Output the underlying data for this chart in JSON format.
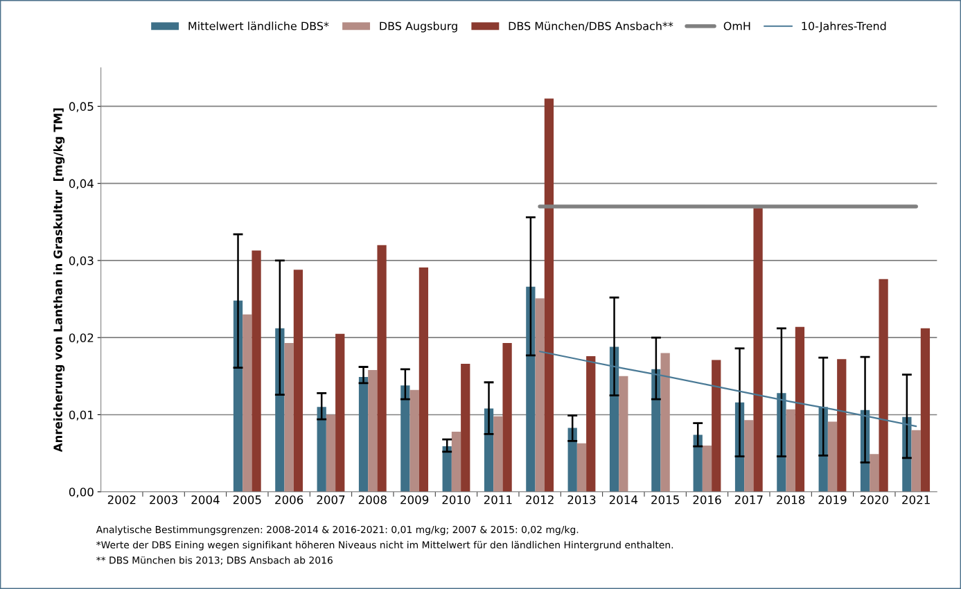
{
  "chart_data": {
    "type": "bar",
    "ylabel": "Anreicherung von Lanthan in Graskultur  [mg/kg TM]",
    "categories": [
      "2002",
      "2003",
      "2004",
      "2005",
      "2006",
      "2007",
      "2008",
      "2009",
      "2010",
      "2011",
      "2012",
      "2013",
      "2014",
      "2015",
      "2016",
      "2017",
      "2018",
      "2019",
      "2020",
      "2021"
    ],
    "series": [
      {
        "name": "Mittelwert ländliche DBS*",
        "color": "#3e7088",
        "values": [
          null,
          null,
          null,
          0.0248,
          0.0212,
          0.011,
          0.0149,
          0.0138,
          0.0059,
          0.0108,
          0.0266,
          0.0083,
          0.0188,
          0.0159,
          0.0074,
          0.0116,
          0.0128,
          0.011,
          0.0106,
          0.0097
        ],
        "errors": [
          null,
          null,
          null,
          [
            0.0161,
            0.0334
          ],
          [
            0.0126,
            0.03
          ],
          [
            0.0094,
            0.0128
          ],
          [
            0.0141,
            0.0162
          ],
          [
            0.012,
            0.0159
          ],
          [
            0.0052,
            0.0068
          ],
          [
            0.0075,
            0.0142
          ],
          [
            0.0177,
            0.0356
          ],
          [
            0.0066,
            0.0099
          ],
          [
            0.0125,
            0.0252
          ],
          [
            0.012,
            0.02
          ],
          [
            0.0059,
            0.0089
          ],
          [
            0.0046,
            0.0186
          ],
          [
            0.0046,
            0.0212
          ],
          [
            0.0047,
            0.0174
          ],
          [
            0.0038,
            0.0175
          ],
          [
            0.0044,
            0.0152
          ]
        ]
      },
      {
        "name": "DBS Augsburg",
        "color": "#b58c85",
        "values": [
          null,
          null,
          null,
          0.023,
          0.0193,
          0.01,
          0.0158,
          0.0132,
          0.0078,
          0.0098,
          0.0251,
          0.0063,
          0.015,
          0.018,
          0.006,
          0.0093,
          0.0107,
          0.0091,
          0.0049,
          0.008
        ]
      },
      {
        "name": "DBS München/DBS Ansbach**",
        "color": "#8b3a2f",
        "values": [
          null,
          null,
          null,
          0.0313,
          0.0288,
          0.0205,
          0.032,
          0.0291,
          0.0166,
          0.0193,
          0.051,
          0.0176,
          null,
          null,
          0.0171,
          0.0368,
          0.0214,
          0.0172,
          0.0276,
          0.0212
        ]
      },
      {
        "name": "OmH",
        "type": "line",
        "color": "#808080",
        "values": [
          null,
          null,
          null,
          null,
          null,
          null,
          null,
          null,
          null,
          null,
          0.037,
          0.037,
          0.037,
          0.037,
          0.037,
          0.037,
          0.037,
          0.037,
          0.037,
          0.037
        ]
      },
      {
        "name": "10-Jahres-Trend",
        "type": "line",
        "color": "#4a7a96",
        "values": [
          null,
          null,
          null,
          null,
          null,
          null,
          null,
          null,
          null,
          null,
          0.0182,
          0.0171,
          0.016,
          0.015,
          0.0139,
          0.0128,
          0.0117,
          0.0107,
          0.0096,
          0.0085
        ]
      }
    ],
    "ylim": [
      0,
      0.055
    ],
    "yticks": [
      {
        "value": 0,
        "label": "0,00"
      },
      {
        "value": 0.01,
        "label": "0,01"
      },
      {
        "value": 0.02,
        "label": "0,02"
      },
      {
        "value": 0.03,
        "label": "0,03"
      },
      {
        "value": 0.04,
        "label": "0,04"
      },
      {
        "value": 0.05,
        "label": "0,05"
      }
    ],
    "grid": "y",
    "legend": "top",
    "annotations": [
      "Analytische Bestimmungsgrenzen: 2008-2014 & 2016-2021: 0,01 mg/kg; 2007 & 2015: 0,02 mg/kg.",
      "*Werte der DBS Eining wegen signifikant höheren Niveaus nicht im Mittelwert für den ländlichen Hintergrund enthalten.",
      "** DBS München bis 2013; DBS Ansbach ab 2016"
    ]
  }
}
